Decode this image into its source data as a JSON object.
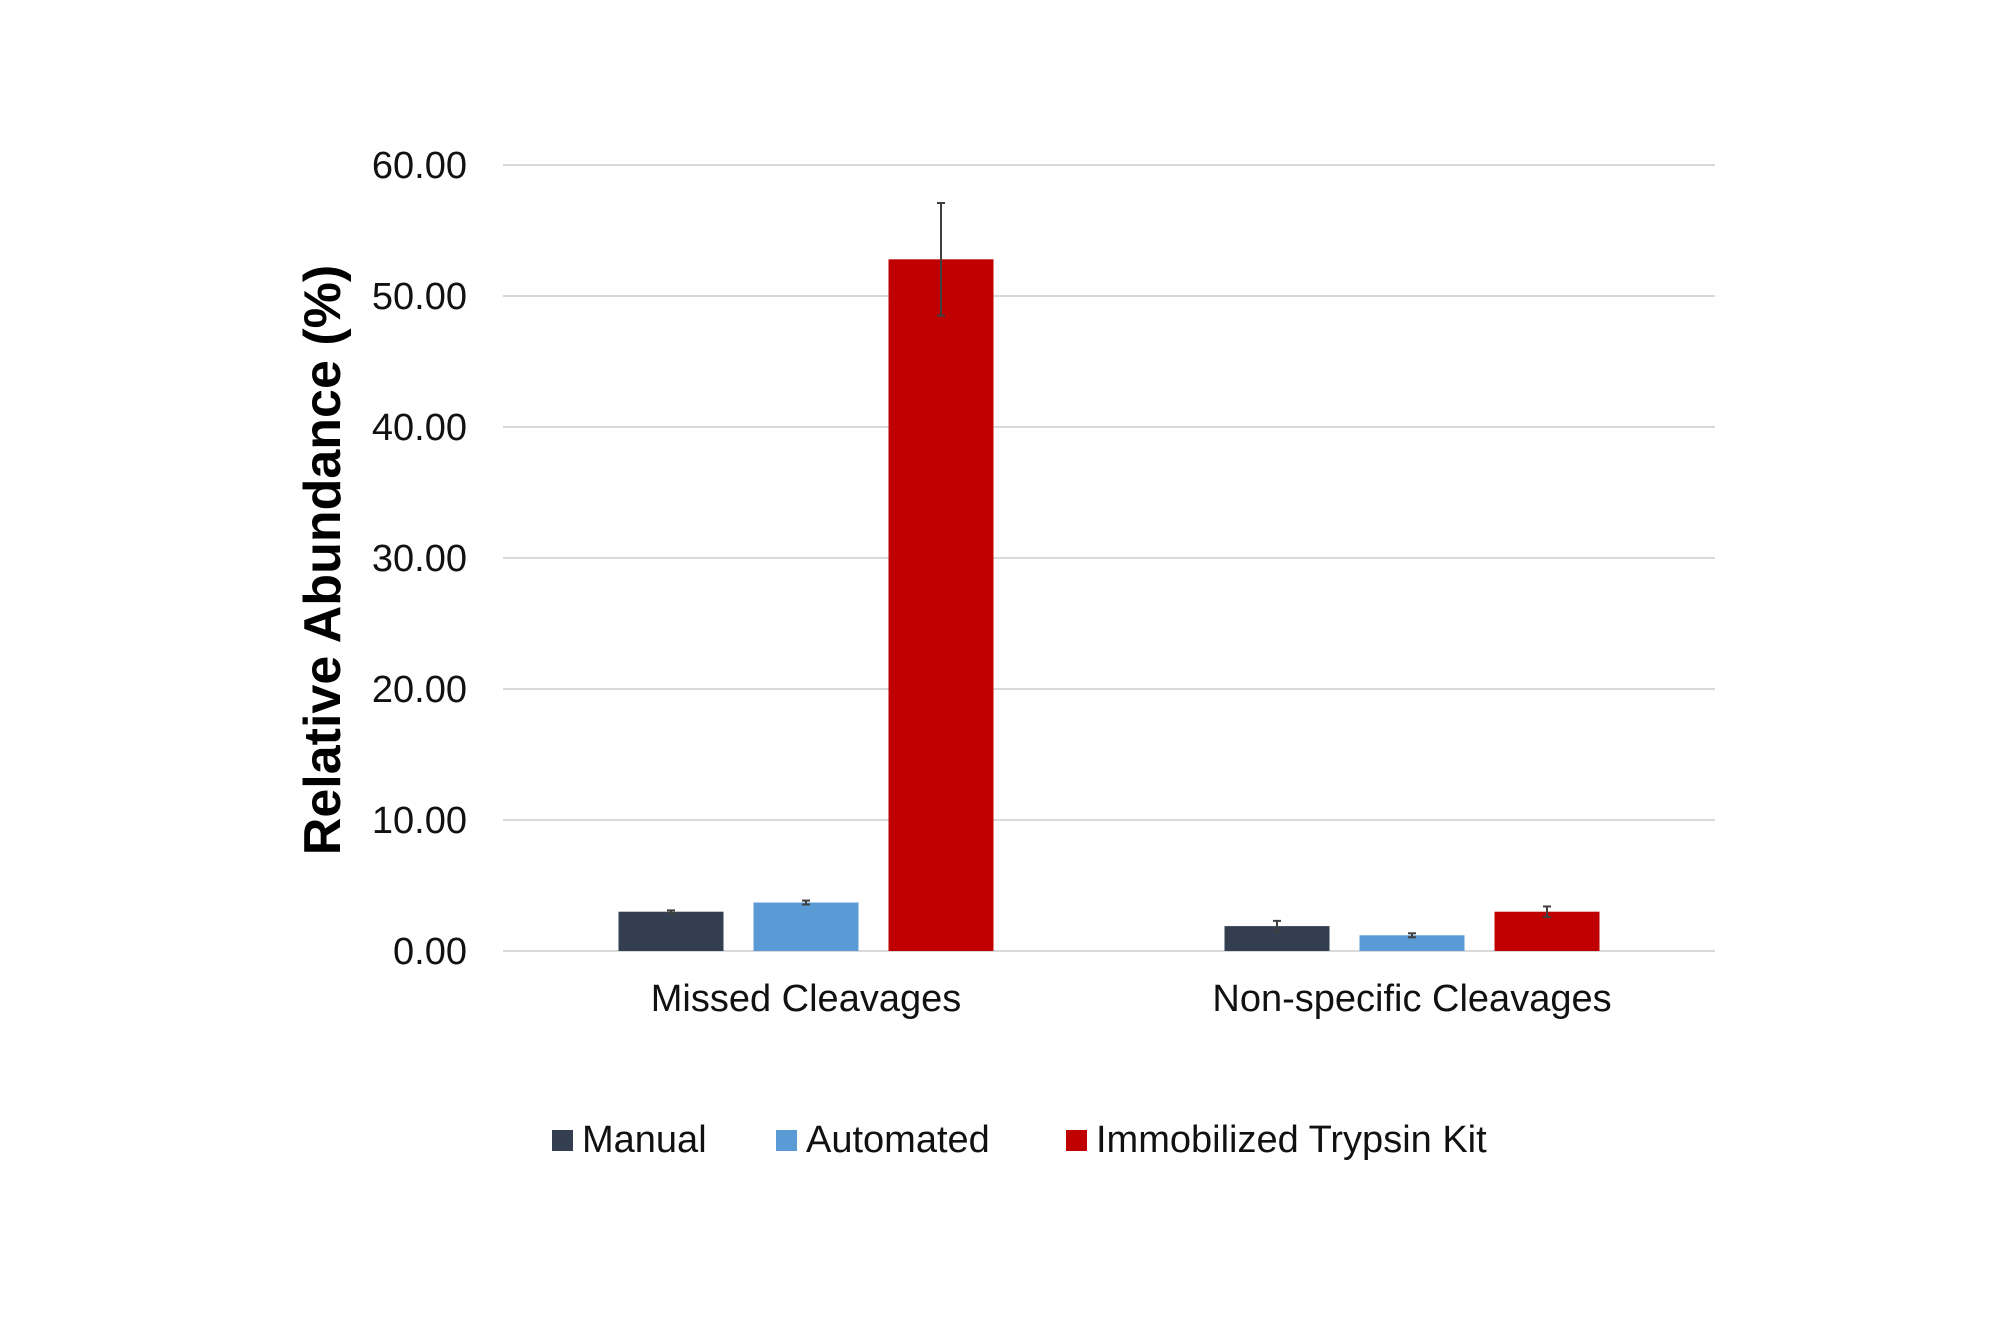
{
  "chart_data": {
    "type": "bar",
    "title": "",
    "xlabel": "",
    "ylabel": "Relative Abundance (%)",
    "ylim": [
      0,
      60
    ],
    "yticks": [
      "0.00",
      "10.00",
      "20.00",
      "30.00",
      "40.00",
      "50.00",
      "60.00"
    ],
    "categories": [
      "Missed Cleavages",
      "Non-specific Cleavages"
    ],
    "series": [
      {
        "name": "Manual",
        "color": "#333f50",
        "values": [
          3.0,
          1.9
        ],
        "errors": [
          0.1,
          0.4
        ]
      },
      {
        "name": "Automated",
        "color": "#5b9bd5",
        "values": [
          3.7,
          1.2
        ],
        "errors": [
          0.15,
          0.15
        ]
      },
      {
        "name": "Immobilized Trypsin Kit",
        "color": "#c00000",
        "values": [
          52.8,
          3.0
        ],
        "errors": [
          4.3,
          0.4
        ]
      }
    ],
    "grid": true,
    "legend_position": "bottom"
  }
}
